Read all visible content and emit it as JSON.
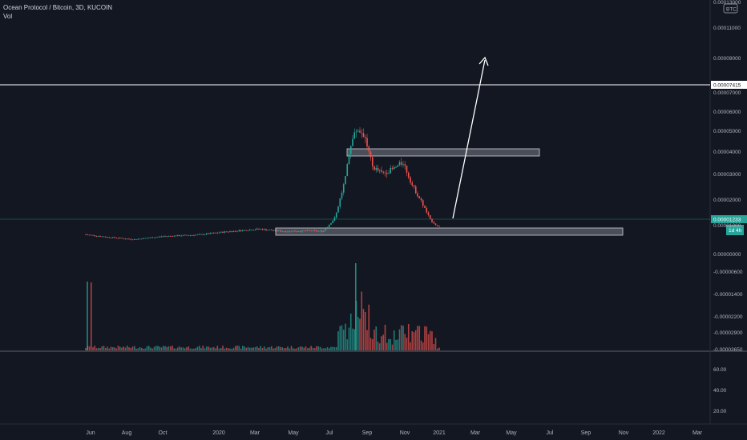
{
  "legend": {
    "title": "Ocean Protocol / Bitcoin, 3D, KUCOIN",
    "volume_label": "Vol"
  },
  "currency_badge": "BTC",
  "colors": {
    "background": "#131722",
    "up": "#26a69a",
    "down": "#ef5350",
    "zone_fill": "#b2b5be",
    "drawing": "#ffffff",
    "axis_text": "#b2b5be",
    "price_line": "#26a69a"
  },
  "chart_data": {
    "type": "candlestick",
    "price_axis_ticks": [
      "0.00013000",
      "0.00011000",
      "0.00009000",
      "0.00007000",
      "0.00006000",
      "0.00005000",
      "0.00004000",
      "0.00003000",
      "0.00002000",
      "0.00001000",
      "0.00000000",
      "-0.00000600",
      "-0.00001400",
      "-0.00002200",
      "-0.00002900",
      "-0.00003650"
    ],
    "oscillator_ticks": [
      "60.00",
      "40.00",
      "20.00"
    ],
    "x_ticks": [
      "Jun",
      "Aug",
      "Oct",
      "2020",
      "Mar",
      "May",
      "Jul",
      "Sep",
      "Nov",
      "2021",
      "Mar",
      "May",
      "Jul",
      "Sep",
      "Nov",
      "2022",
      "Mar"
    ],
    "last_price_label": "0.00001233",
    "countdown_label": "1d 4h",
    "horizontal_line_label": "0.00007415",
    "horizontal_line_price": 7.415e-05,
    "last_price": 1.233e-05,
    "support_zone_price": [
      9.2e-06,
      1.05e-05
    ],
    "resistance_zone_price": [
      3.7e-05,
      4e-05
    ],
    "arrow_target_note": "upward projection arrow from last close",
    "candle_trend": [
      [
        "2019-05-27",
        8.6e-06
      ],
      [
        "2019-07-01",
        7.5e-06
      ],
      [
        "2019-08-15",
        6.5e-06
      ],
      [
        "2019-10-01",
        7.8e-06
      ],
      [
        "2019-12-01",
        8.5e-06
      ],
      [
        "2020-01-15",
        9.8e-06
      ],
      [
        "2020-03-10",
        1.1e-05
      ],
      [
        "2020-04-20",
        1e-05
      ],
      [
        "2020-06-01",
        1.02e-05
      ],
      [
        "2020-06-25",
        1e-05
      ],
      [
        "2020-07-15",
        1.6e-05
      ],
      [
        "2020-08-01",
        3.3e-05
      ],
      [
        "2020-08-10",
        4.8e-05
      ],
      [
        "2020-08-20",
        5.45e-05
      ],
      [
        "2020-09-01",
        5.2e-05
      ],
      [
        "2020-09-15",
        3.8e-05
      ],
      [
        "2020-10-01",
        3.5e-05
      ],
      [
        "2020-10-20",
        3.7e-05
      ],
      [
        "2020-11-05",
        4e-05
      ],
      [
        "2020-11-20",
        3e-05
      ],
      [
        "2020-12-05",
        2.3e-05
      ],
      [
        "2020-12-20",
        1.5e-05
      ],
      [
        "2021-01-01",
        1.23e-05
      ]
    ]
  }
}
